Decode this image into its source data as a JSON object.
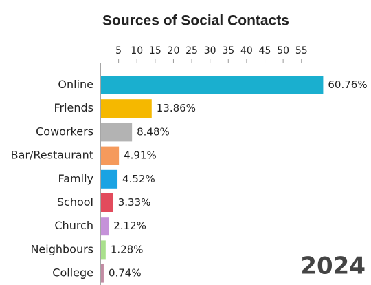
{
  "chart_data": {
    "type": "bar",
    "orientation": "horizontal",
    "title": "Sources of Social Contacts",
    "annotation": "2024",
    "categories": [
      "Online",
      "Friends",
      "Coworkers",
      "Bar/Restaurant",
      "Family",
      "School",
      "Church",
      "Neighbours",
      "College"
    ],
    "values": [
      60.76,
      13.86,
      8.48,
      4.91,
      4.52,
      3.33,
      2.12,
      1.28,
      0.74
    ],
    "value_labels": [
      "60.76%",
      "13.86%",
      "8.48%",
      "4.91%",
      "4.52%",
      "3.33%",
      "2.12%",
      "1.28%",
      "0.74%"
    ],
    "colors": [
      "#1aafcf",
      "#f5b800",
      "#b3b3b3",
      "#f59a5c",
      "#1aa3e3",
      "#e24b5c",
      "#c592d9",
      "#a9e08c",
      "#c28ca3"
    ],
    "xlim": [
      0,
      62
    ],
    "xticks": [
      5,
      10,
      15,
      20,
      25,
      30,
      35,
      40,
      45,
      50,
      55
    ]
  }
}
